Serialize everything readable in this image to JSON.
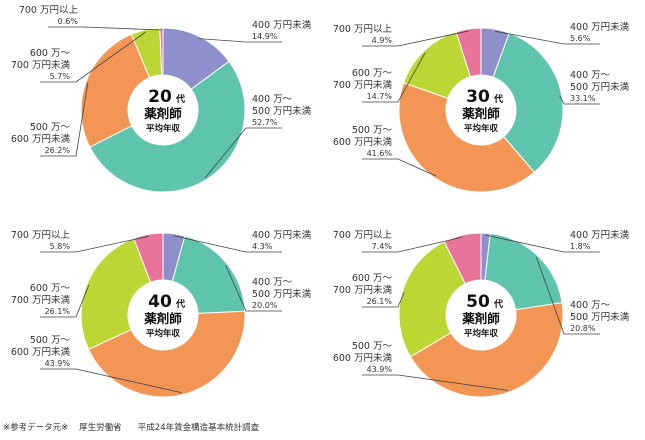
{
  "colors": {
    "lt400": "#8f8fcc",
    "r400_500": "#5fc4ad",
    "r500_600": "#f39655",
    "r600_700": "#bcd633",
    "ge700": "#e8749a"
  },
  "center_text": {
    "dai": "代",
    "line1": "薬剤師",
    "line2": "平均年収"
  },
  "footer": {
    "note": "※参考データ元※",
    "ministry": "厚生労働省",
    "survey": "平成24年賃金構造基本統計調査"
  },
  "chart_data": [
    {
      "type": "pie",
      "age": "20",
      "labels": [
        {
          "key": "lt400",
          "line1": "400 万円未満",
          "line2": "",
          "pct": "14.9%"
        },
        {
          "key": "r400_500",
          "line1": "400 万〜",
          "line2": "500 万円未満",
          "pct": "52.7%"
        },
        {
          "key": "r500_600",
          "line1": "500 万〜",
          "line2": "600 万円未満",
          "pct": "26.2%"
        },
        {
          "key": "r600_700",
          "line1": "600 万〜",
          "line2": "700 万円未満",
          "pct": "5.7%"
        },
        {
          "key": "ge700",
          "line1": "700 万円以上",
          "line2": "",
          "pct": "0.6%"
        }
      ],
      "values": [
        14.9,
        52.7,
        26.2,
        5.7,
        0.6
      ]
    },
    {
      "type": "pie",
      "age": "30",
      "labels": [
        {
          "key": "lt400",
          "line1": "400 万円未満",
          "line2": "",
          "pct": "5.6%"
        },
        {
          "key": "r400_500",
          "line1": "400 万〜",
          "line2": "500 万円未満",
          "pct": "33.1%"
        },
        {
          "key": "r500_600",
          "line1": "500 万〜",
          "line2": "600 万円未満",
          "pct": "41.6%"
        },
        {
          "key": "r600_700",
          "line1": "600 万〜",
          "line2": "700 万円未満",
          "pct": "14.7%"
        },
        {
          "key": "ge700",
          "line1": "700 万円以上",
          "line2": "",
          "pct": "4.9%"
        }
      ],
      "values": [
        5.6,
        33.1,
        41.6,
        14.7,
        4.9
      ]
    },
    {
      "type": "pie",
      "age": "40",
      "labels": [
        {
          "key": "lt400",
          "line1": "400 万円未満",
          "line2": "",
          "pct": "4.3%"
        },
        {
          "key": "r400_500",
          "line1": "400 万〜",
          "line2": "500 万円未満",
          "pct": "20.0%"
        },
        {
          "key": "r500_600",
          "line1": "500 万〜",
          "line2": "600 万円未満",
          "pct": "43.9%"
        },
        {
          "key": "r600_700",
          "line1": "600 万〜",
          "line2": "700 万円未満",
          "pct": "26.1%"
        },
        {
          "key": "ge700",
          "line1": "700 万円以上",
          "line2": "",
          "pct": "5.8%"
        }
      ],
      "values": [
        4.3,
        20.0,
        43.9,
        26.1,
        5.8
      ]
    },
    {
      "type": "pie",
      "age": "50",
      "labels": [
        {
          "key": "lt400",
          "line1": "400 万円未満",
          "line2": "",
          "pct": "1.8%"
        },
        {
          "key": "r400_500",
          "line1": "400 万〜",
          "line2": "500 万円未満",
          "pct": "20.8%"
        },
        {
          "key": "r500_600",
          "line1": "500 万〜",
          "line2": "600 万円未満",
          "pct": "43.9%"
        },
        {
          "key": "r600_700",
          "line1": "600 万〜",
          "line2": "700 万円未満",
          "pct": "26.1%"
        },
        {
          "key": "ge700",
          "line1": "700 万円以上",
          "line2": "",
          "pct": "7.4%"
        }
      ],
      "values": [
        1.8,
        20.8,
        43.9,
        26.1,
        7.4
      ]
    }
  ]
}
